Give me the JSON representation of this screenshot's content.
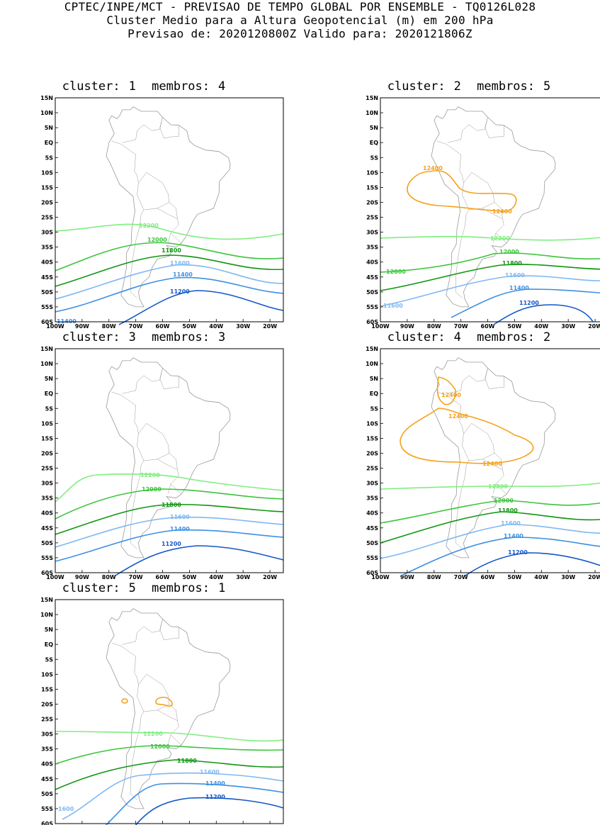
{
  "header": {
    "line1": "CPTEC/INPE/MCT - PREVISAO DE TEMPO GLOBAL POR ENSEMBLE - TQ0126L028",
    "line2": "Cluster Medio para a Altura Geopotencial (m) em 200 hPa",
    "line3": "Previsao de: 2020120800Z   Valido para: 2020121806Z"
  },
  "axes": {
    "lat_labels": [
      "15N",
      "10N",
      "5N",
      "EQ",
      "5S",
      "10S",
      "15S",
      "20S",
      "25S",
      "30S",
      "35S",
      "40S",
      "45S",
      "50S",
      "55S",
      "60S"
    ],
    "lon_labels": [
      "100W",
      "90W",
      "80W",
      "70W",
      "60W",
      "50W",
      "40W",
      "30W",
      "20W"
    ]
  },
  "colors": {
    "c12400": "#f5a11a",
    "c12200": "#7fee7f",
    "c12000": "#3cc43c",
    "c11800": "#109510",
    "c11600": "#7fb8f2",
    "c11400": "#3d8fe3",
    "c11200": "#1457c6",
    "land": "#999999",
    "frame": "#000000"
  },
  "clusters": [
    {
      "cluster_label": "cluster:",
      "cluster_num": "1",
      "members_label": "membros:",
      "members_num": "4",
      "contour_labels": [
        "12200",
        "12000",
        "11800",
        "11600",
        "11400",
        "11200",
        "11400"
      ]
    },
    {
      "cluster_label": "cluster:",
      "cluster_num": "2",
      "members_label": "membros:",
      "members_num": "5",
      "contour_labels": [
        "12400",
        "12400",
        "12200",
        "12000",
        "12000",
        "11800",
        "11600",
        "11400",
        "11200",
        "11600"
      ]
    },
    {
      "cluster_label": "cluster:",
      "cluster_num": "3",
      "members_label": "membros:",
      "members_num": "3",
      "contour_labels": [
        "12200",
        "12000",
        "11800",
        "11600",
        "11400",
        "11200"
      ]
    },
    {
      "cluster_label": "cluster:",
      "cluster_num": "4",
      "members_label": "membros:",
      "members_num": "2",
      "contour_labels": [
        "12400",
        "12400",
        "12400",
        "12200",
        "12000",
        "11800",
        "11600",
        "11400",
        "11200"
      ]
    },
    {
      "cluster_label": "cluster:",
      "cluster_num": "5",
      "members_label": "membros:",
      "members_num": "1",
      "contour_labels": [
        "12200",
        "12000",
        "11800",
        "11600",
        "11400",
        "11200",
        "1600"
      ]
    }
  ]
}
